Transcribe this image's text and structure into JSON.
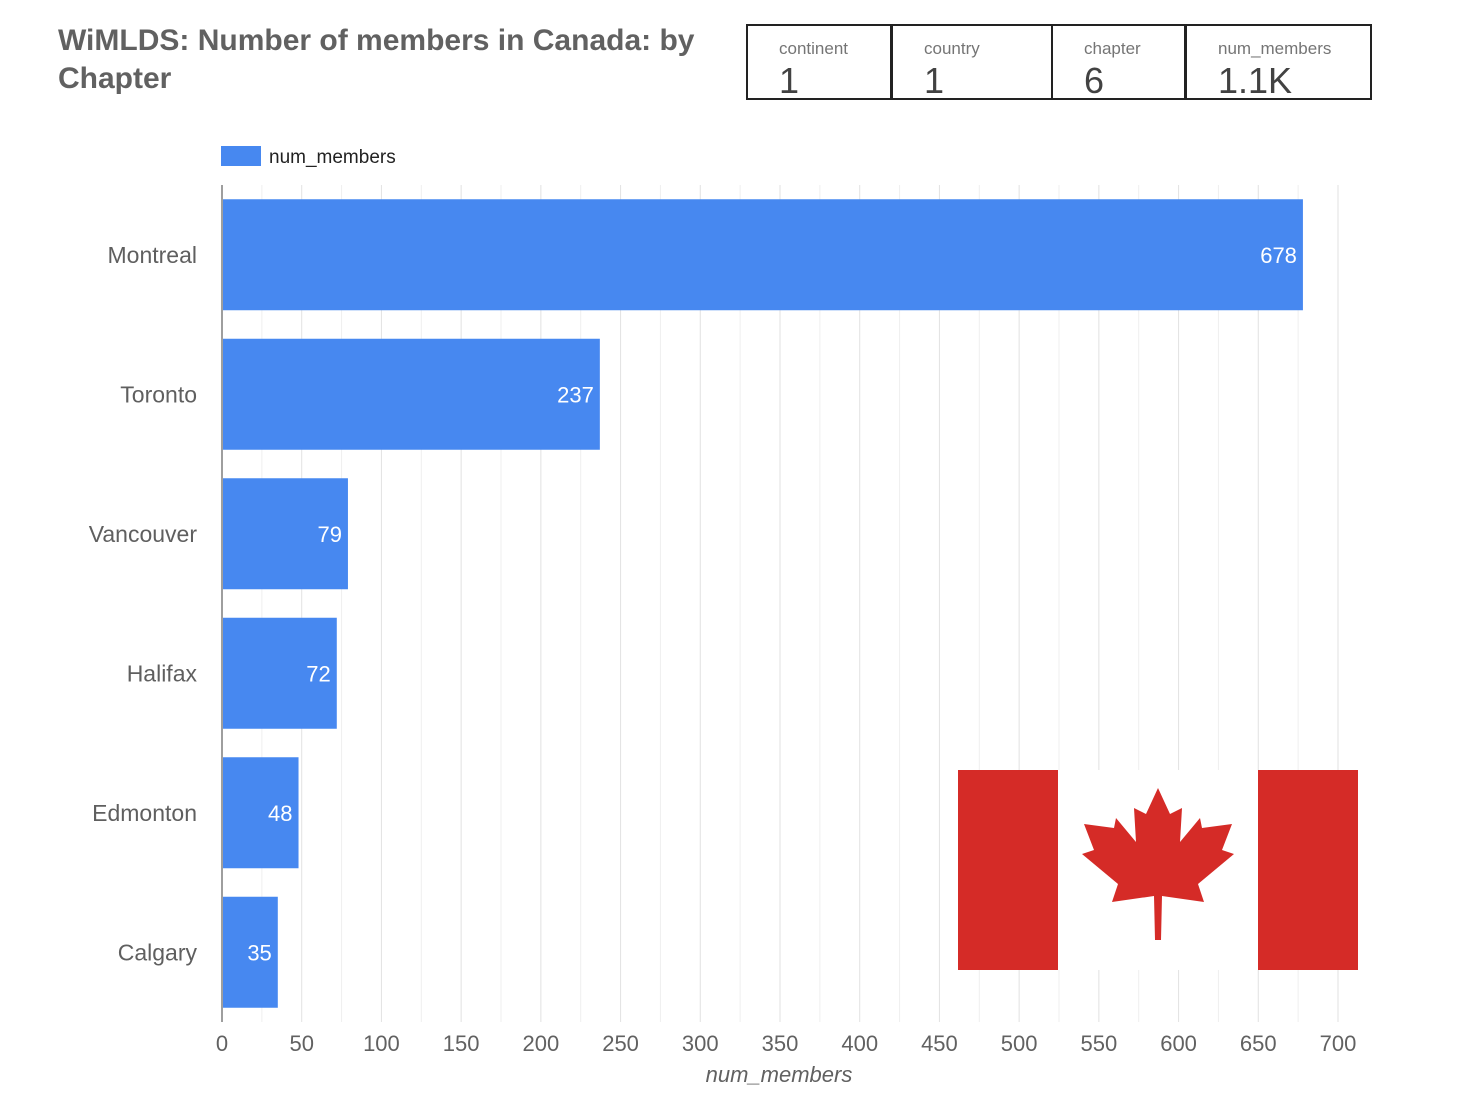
{
  "title": "WiMLDS: Number of members in Canada: by Chapter",
  "scorecards": [
    {
      "label": "continent",
      "value": "1"
    },
    {
      "label": "country",
      "value": "1"
    },
    {
      "label": "chapter",
      "value": "6"
    },
    {
      "label": "num_members",
      "value": "1.1K"
    }
  ],
  "chart_data": {
    "type": "bar",
    "orientation": "horizontal",
    "categories": [
      "Montreal",
      "Toronto",
      "Vancouver",
      "Halifax",
      "Edmonton",
      "Calgary"
    ],
    "series": [
      {
        "name": "num_members",
        "values": [
          678,
          237,
          79,
          72,
          48,
          35
        ]
      }
    ],
    "xlabel": "num_members",
    "ylabel": "",
    "xlim": [
      0,
      700
    ],
    "xticks": [
      0,
      50,
      100,
      150,
      200,
      250,
      300,
      350,
      400,
      450,
      500,
      550,
      600,
      650,
      700
    ],
    "grid": true,
    "legend_position": "top-left",
    "bar_color": "#4788f0",
    "data_labels": true
  },
  "flag_image": {
    "icon": "canada-flag",
    "red": "#d52b27",
    "white": "#ffffff"
  }
}
